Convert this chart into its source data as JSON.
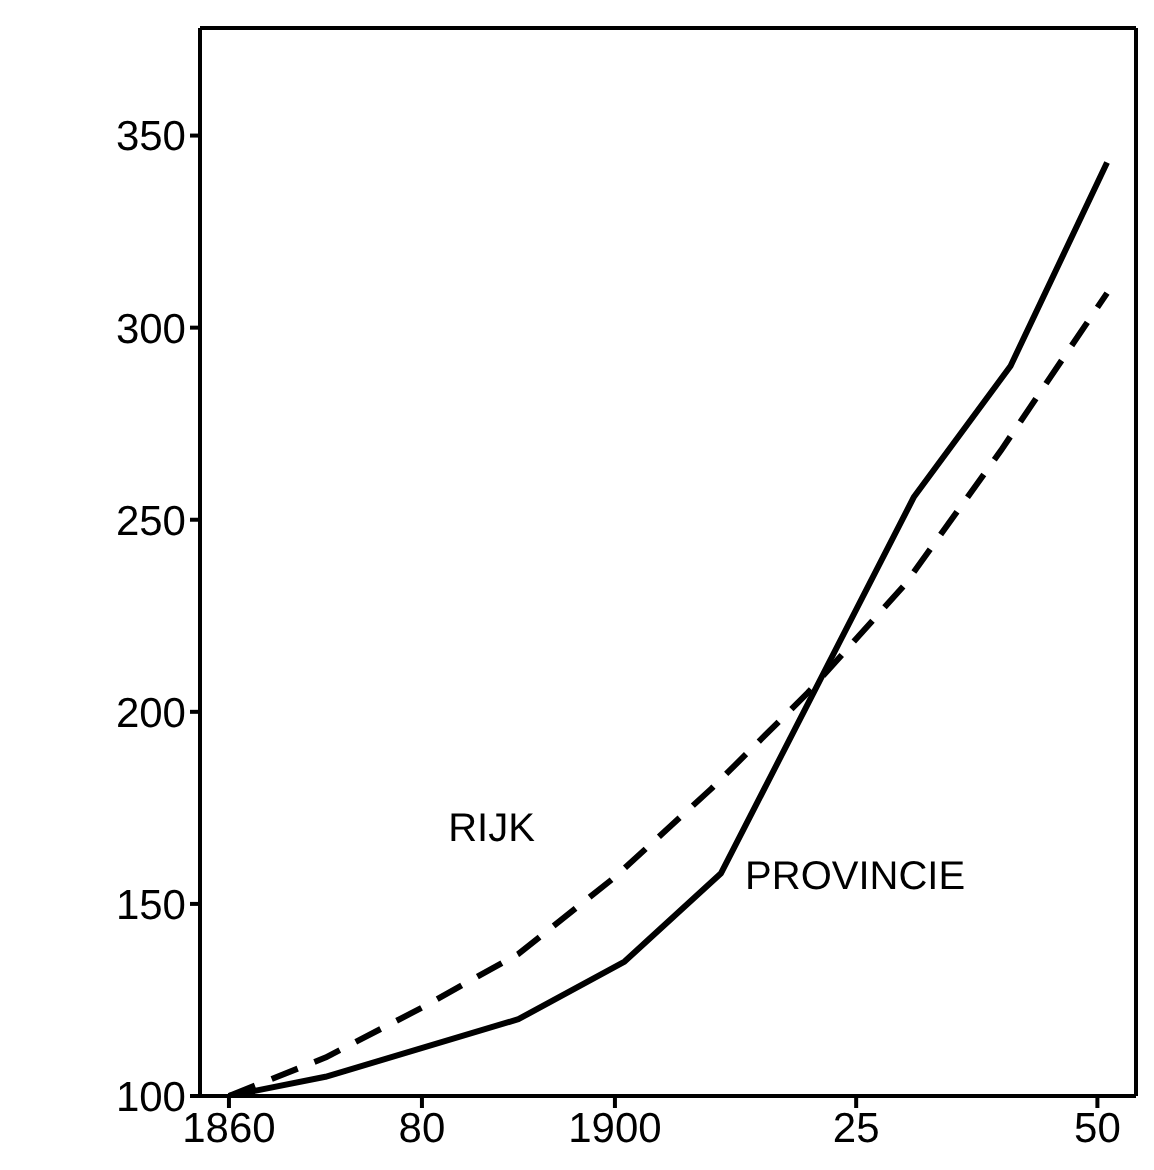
{
  "chart_data": {
    "type": "line",
    "xlim": [
      1857,
      1954
    ],
    "xticks": [
      1860,
      {
        "value": 1880,
        "label": "80"
      },
      1900,
      {
        "value": 1925,
        "label": "25"
      },
      {
        "value": 1950,
        "label": "50"
      }
    ],
    "ylim": [
      100,
      378
    ],
    "yticks": [
      100,
      150,
      200,
      250,
      300,
      350
    ],
    "series": [
      {
        "name": "RIJK",
        "color": "#000000",
        "line_style": "dashed",
        "x": [
          1860,
          1870,
          1880,
          1890,
          1900,
          1910,
          1920,
          1930,
          1940,
          1951
        ],
        "values": [
          100,
          110,
          123,
          137,
          157,
          180,
          205,
          233,
          268,
          309
        ]
      },
      {
        "name": "PROVINCIE",
        "color": "#000000",
        "line_style": "solid",
        "x": [
          1860,
          1870,
          1890,
          1901,
          1911,
          1931,
          1941,
          1951
        ],
        "values": [
          100,
          105,
          120,
          135,
          158,
          256,
          290,
          343
        ]
      }
    ],
    "marker": "none"
  }
}
